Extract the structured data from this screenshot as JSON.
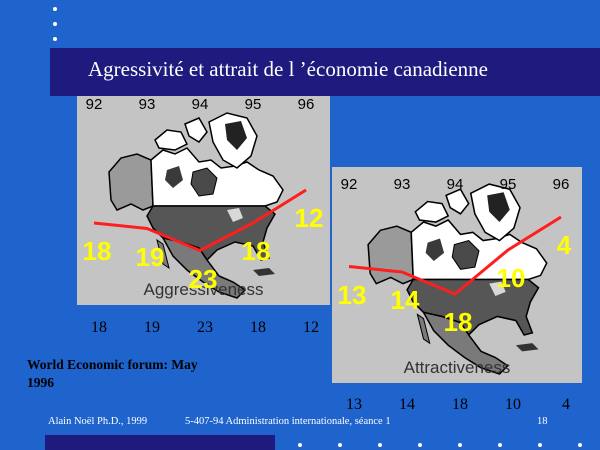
{
  "slide": {
    "title": "Agressivité et attrait de l ’économie canadienne",
    "source": "World Economic forum: May\n1996",
    "footer": {
      "author": "Alain Noël Ph.D., 1999",
      "course": "5-407-94 Administration internationale, séance 1",
      "page_number": "18"
    }
  },
  "colors": {
    "background": "#1F63CC",
    "title_bar": "#1E1A7E",
    "chart_panel": "#C4C4C4",
    "line": "#FF1E1E",
    "data_label": "#FFFF00"
  },
  "chart_data": [
    {
      "type": "line",
      "caption": "Aggressiveness",
      "x": [
        "92",
        "93",
        "94",
        "95",
        "96"
      ],
      "y_inverted": true,
      "series": [
        {
          "values": [
            18,
            19,
            23,
            18,
            12
          ]
        }
      ]
    },
    {
      "type": "line",
      "caption": "Attractiveness",
      "x": [
        "92",
        "93",
        "94",
        "95",
        "96"
      ],
      "y_inverted": true,
      "series": [
        {
          "values": [
            13,
            14,
            18,
            10,
            4
          ]
        }
      ]
    }
  ]
}
